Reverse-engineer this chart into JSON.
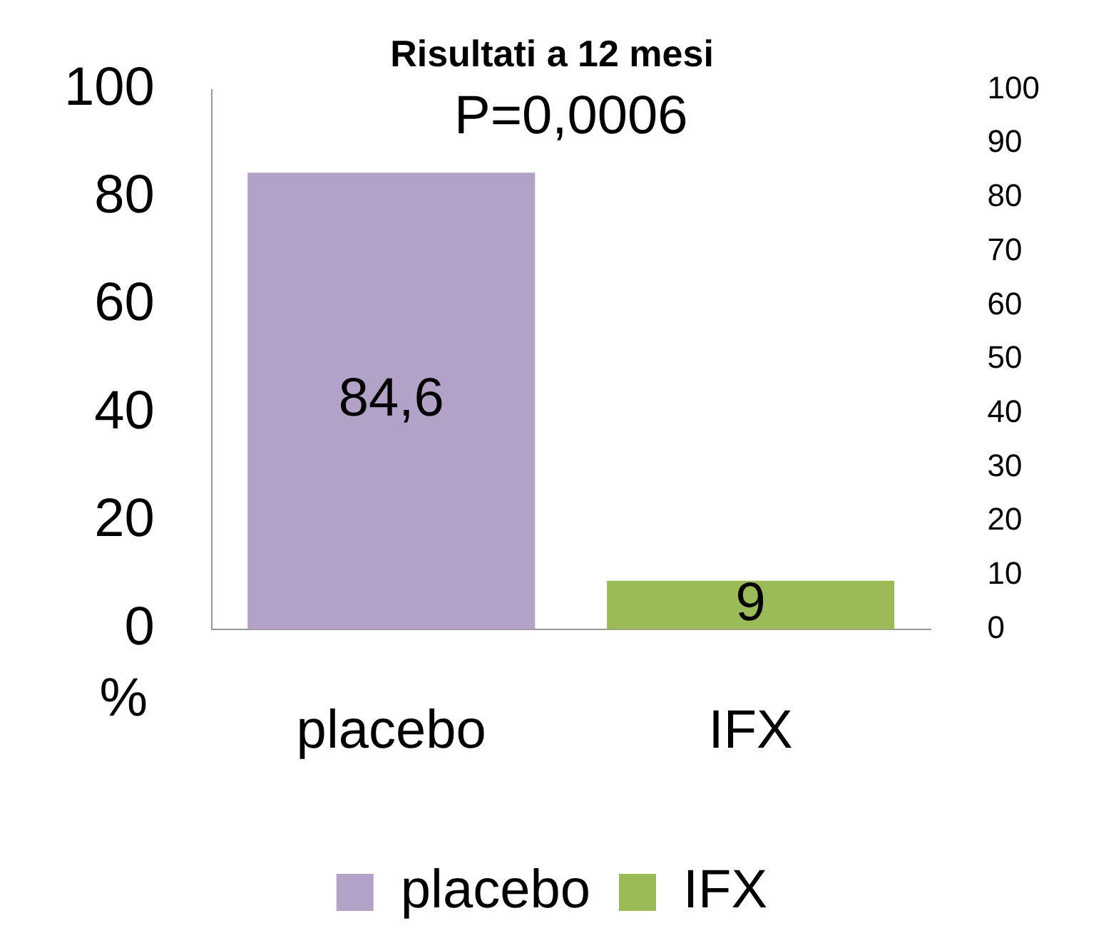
{
  "chart_data": {
    "type": "bar",
    "title": "Risultati a 12 mesi",
    "ylabel": "%",
    "categories": [
      "placebo",
      "IFX"
    ],
    "series": [
      {
        "name": "placebo",
        "color": "#b3a2c7",
        "values": [
          84.6,
          null
        ],
        "value_labels": [
          "84,6",
          null
        ]
      },
      {
        "name": "IFX",
        "color": "#9bbb59",
        "values": [
          null,
          9
        ],
        "value_labels": [
          null,
          "9"
        ]
      }
    ],
    "ylim": [
      0,
      100
    ],
    "yticks": [
      0,
      20,
      40,
      60,
      80,
      100
    ],
    "y2lim": [
      0,
      100
    ],
    "y2ticks": [
      0,
      10,
      20,
      30,
      40,
      50,
      60,
      70,
      80,
      90,
      100
    ],
    "annotations": [
      "P=0,0006"
    ],
    "grid": false,
    "legend": "bottom"
  }
}
